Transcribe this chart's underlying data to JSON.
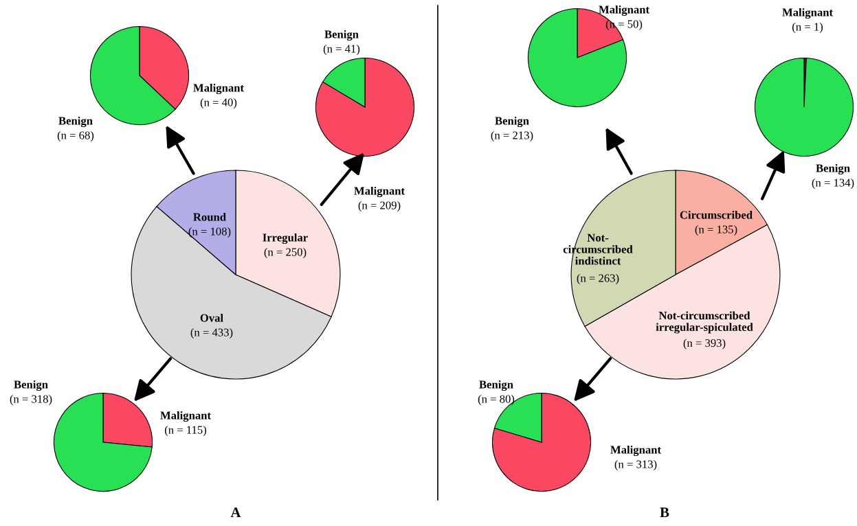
{
  "chart_data": [
    {
      "type": "pie",
      "title": "A",
      "categories": [
        "Irregular",
        "Oval",
        "Round"
      ],
      "values": [
        250,
        433,
        108
      ],
      "value_labels": [
        "(n = 250)",
        "(n = 433)",
        "(n = 108)"
      ],
      "colors": [
        "#fde2e2",
        "#d9d9d9",
        "#b4aee8"
      ]
    },
    {
      "type": "pie",
      "categories": [
        "Malignant",
        "Benign"
      ],
      "values": [
        40,
        68
      ],
      "value_labels": [
        "(n = 40)",
        "(n = 68)"
      ],
      "colors": [
        "#fa4862",
        "#28e054"
      ]
    },
    {
      "type": "pie",
      "categories": [
        "Malignant",
        "Benign"
      ],
      "values": [
        209,
        41
      ],
      "value_labels": [
        "(n = 209)",
        "(n = 41)"
      ],
      "colors": [
        "#fa4862",
        "#28e054"
      ]
    },
    {
      "type": "pie",
      "categories": [
        "Malignant",
        "Benign"
      ],
      "values": [
        115,
        318
      ],
      "value_labels": [
        "(n = 115)",
        "(n = 318)"
      ],
      "colors": [
        "#fa4862",
        "#28e054"
      ]
    },
    {
      "type": "pie",
      "title": "B",
      "categories": [
        "Circumscribed",
        "Not-circumscribed\nirregular-spiculated",
        "Not-\ncircumscribed\nindistinct"
      ],
      "values": [
        135,
        393,
        263
      ],
      "value_labels": [
        "(n = 135)",
        "(n = 393)",
        "(n = 263)"
      ],
      "colors": [
        "#f9b0a3",
        "#fde2e2",
        "#d1d9b2"
      ]
    },
    {
      "type": "pie",
      "categories": [
        "Malignant",
        "Benign"
      ],
      "values": [
        50,
        213
      ],
      "value_labels": [
        "(n = 50)",
        "(n = 213)"
      ],
      "colors": [
        "#fa4862",
        "#28e054"
      ]
    },
    {
      "type": "pie",
      "categories": [
        "Malignant",
        "Benign"
      ],
      "values": [
        1,
        134
      ],
      "value_labels": [
        "(n = 1)",
        "(n = 134)"
      ],
      "colors": [
        "#c00000",
        "#28e054"
      ]
    },
    {
      "type": "pie",
      "categories": [
        "Malignant",
        "Benign"
      ],
      "values": [
        313,
        80
      ],
      "value_labels": [
        "(n = 313)",
        "(n = 80)"
      ],
      "colors": [
        "#fa4862",
        "#28e054"
      ]
    }
  ]
}
